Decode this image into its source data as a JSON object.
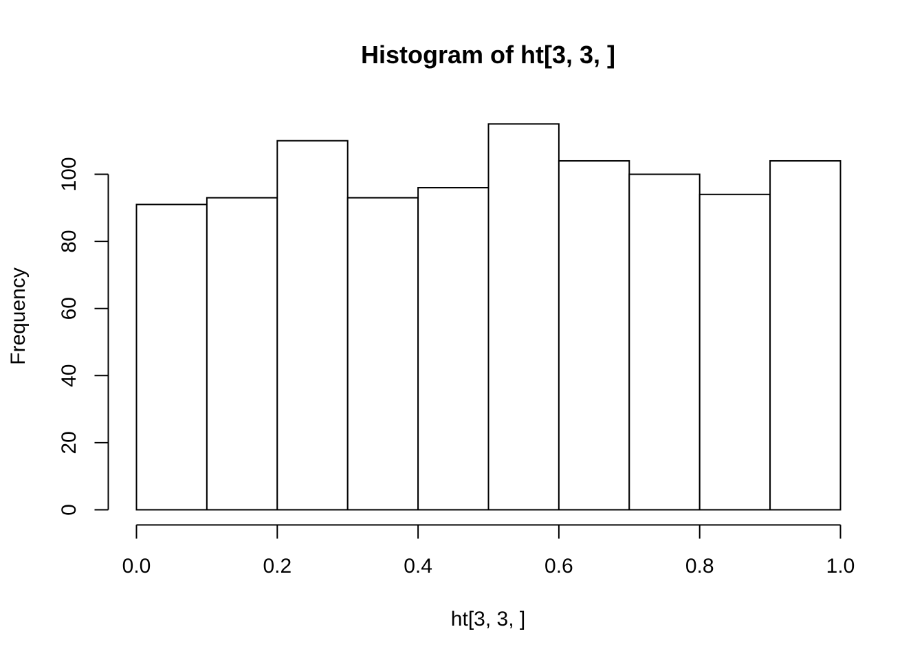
{
  "chart_data": {
    "type": "bar",
    "title": "Histogram of ht[3, 3, ]",
    "xlabel": "ht[3, 3, ]",
    "ylabel": "Frequency",
    "bins": [
      {
        "start": 0.0,
        "end": 0.1,
        "value": 91
      },
      {
        "start": 0.1,
        "end": 0.2,
        "value": 93
      },
      {
        "start": 0.2,
        "end": 0.3,
        "value": 110
      },
      {
        "start": 0.3,
        "end": 0.4,
        "value": 93
      },
      {
        "start": 0.4,
        "end": 0.5,
        "value": 96
      },
      {
        "start": 0.5,
        "end": 0.6,
        "value": 115
      },
      {
        "start": 0.6,
        "end": 0.7,
        "value": 104
      },
      {
        "start": 0.7,
        "end": 0.8,
        "value": 100
      },
      {
        "start": 0.8,
        "end": 0.9,
        "value": 94
      },
      {
        "start": 0.9,
        "end": 1.0,
        "value": 104
      }
    ],
    "xlim": [
      0,
      1
    ],
    "ylim": [
      0,
      120
    ],
    "x_ticks": [
      {
        "value": 0.0,
        "label": "0.0"
      },
      {
        "value": 0.2,
        "label": "0.2"
      },
      {
        "value": 0.4,
        "label": "0.4"
      },
      {
        "value": 0.6,
        "label": "0.6"
      },
      {
        "value": 0.8,
        "label": "0.8"
      },
      {
        "value": 1.0,
        "label": "1.0"
      }
    ],
    "y_ticks": [
      {
        "value": 0,
        "label": "0"
      },
      {
        "value": 20,
        "label": "20"
      },
      {
        "value": 40,
        "label": "40"
      },
      {
        "value": 60,
        "label": "60"
      },
      {
        "value": 80,
        "label": "80"
      },
      {
        "value": 100,
        "label": "100"
      }
    ],
    "grid": false,
    "bar_fill": "#ffffff",
    "bar_stroke": "#000000"
  }
}
